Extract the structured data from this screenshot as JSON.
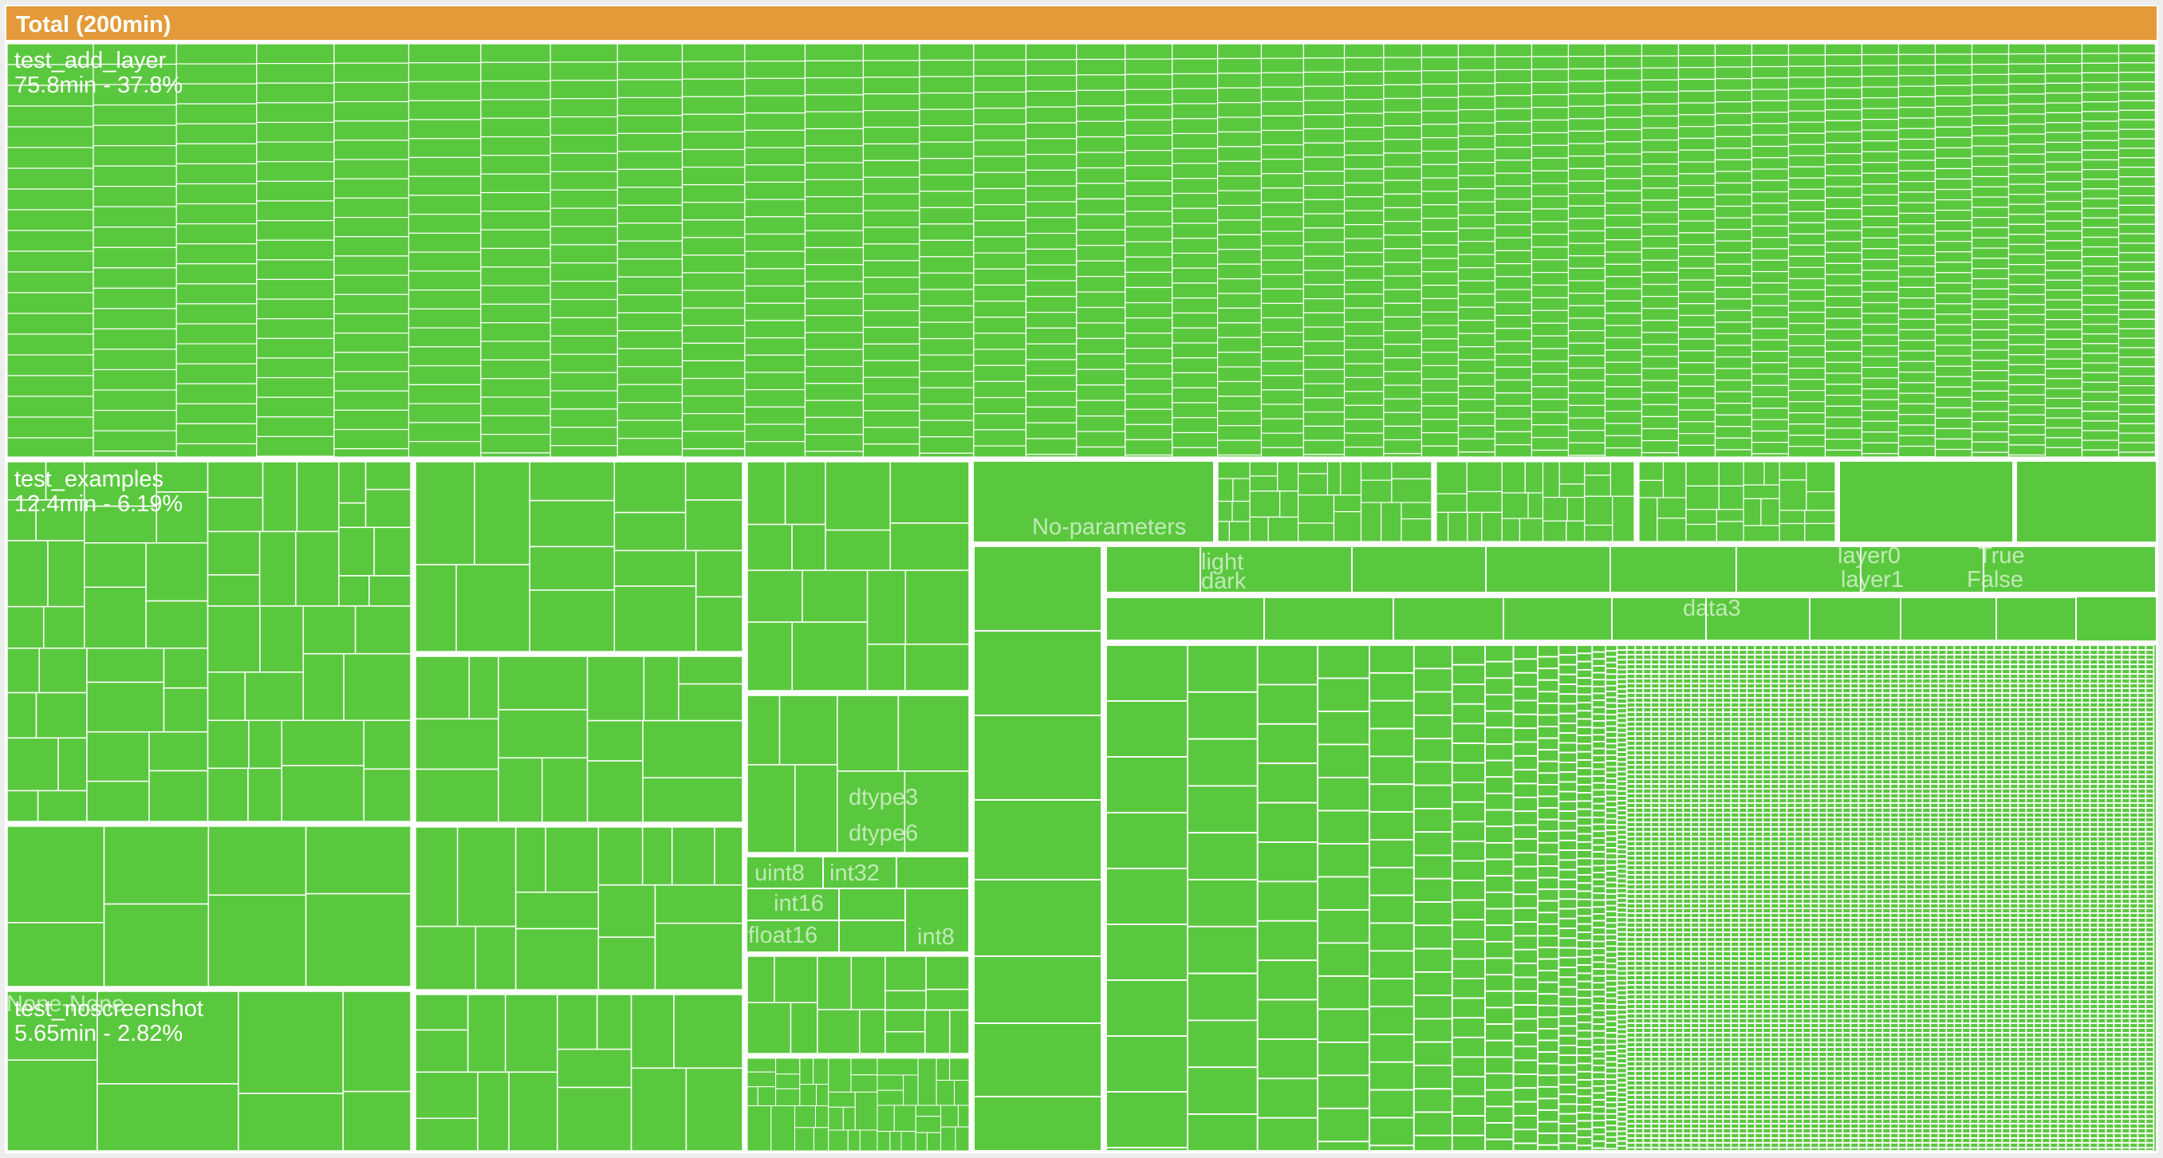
{
  "chart_data": {
    "type": "treemap",
    "title": "Total (200min)",
    "cell_color": "#5ac83f",
    "header_color": "#e49a38",
    "border_color": "#ffffff",
    "groups": [
      {
        "name": "test_add_layer",
        "stat": "75.8min - 37.8%",
        "minutes": 75.8,
        "percent": 37.8
      },
      {
        "name": "test_examples",
        "stat": "12.4min - 6.19%",
        "minutes": 12.4,
        "percent": 6.19
      },
      {
        "name": "test_noscreenshot",
        "stat": "5.65min - 2.82%",
        "minutes": 5.65,
        "percent": 2.82
      }
    ],
    "parameter_labels": [
      "No-parameters",
      "light",
      "dark",
      "layer0",
      "layer1",
      "True",
      "False",
      "data3",
      "dtype3",
      "dtype6",
      "uint8",
      "int32",
      "int16",
      "float16",
      "int8",
      "None-None"
    ]
  }
}
